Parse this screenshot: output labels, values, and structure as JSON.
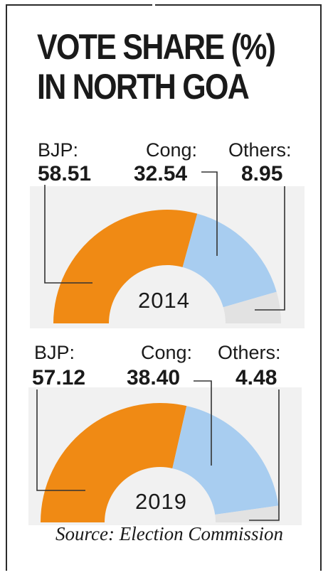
{
  "title": {
    "line1": "VOTE SHARE (%)",
    "line2": "IN NORTH GOA"
  },
  "colors": {
    "bjp": "#f08a14",
    "cong": "#a8cdf0",
    "others": "#e2e2e2",
    "panel": "#f1f1f1",
    "leader": "#333333"
  },
  "chart_data": [
    {
      "type": "pie",
      "year": "2014",
      "slices": [
        {
          "name": "BJP:",
          "value": "58.51"
        },
        {
          "name": "Cong:",
          "value": "32.54"
        },
        {
          "name": "Others:",
          "value": "8.95"
        }
      ]
    },
    {
      "type": "pie",
      "year": "2019",
      "slices": [
        {
          "name": "BJP:",
          "value": "57.12"
        },
        {
          "name": "Cong:",
          "value": "38.40"
        },
        {
          "name": "Others:",
          "value": "4.48"
        }
      ]
    }
  ],
  "source": "Source: Election Commission"
}
